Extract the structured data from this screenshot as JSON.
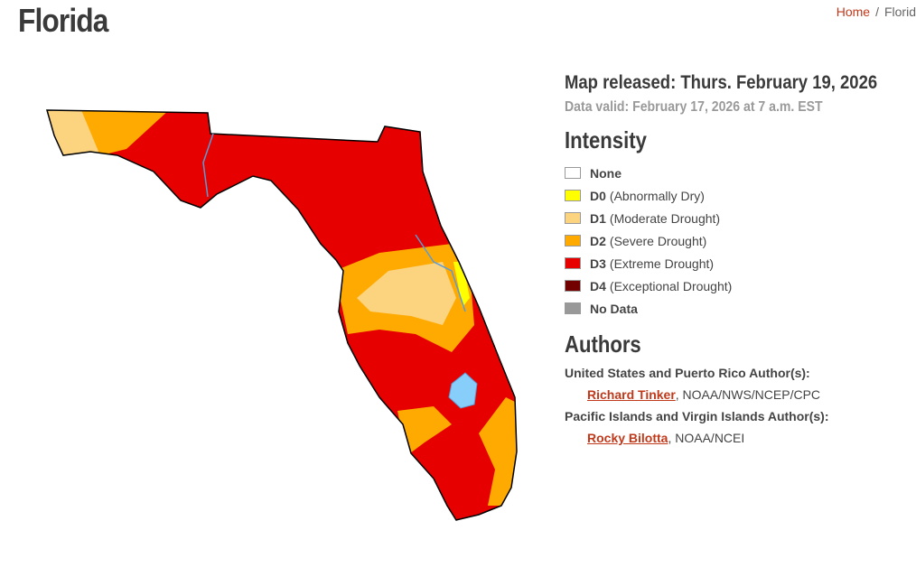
{
  "header": {
    "title": "Florida",
    "breadcrumb": {
      "home": "Home",
      "separator": "/",
      "current": "Florid"
    }
  },
  "map_info": {
    "released": "Map released: Thurs. February 19, 2026",
    "valid": "Data valid: February 17, 2026 at 7 a.m. EST"
  },
  "intensity": {
    "heading": "Intensity",
    "items": [
      {
        "code": "None",
        "color": "#ffffff"
      },
      {
        "code": "D0",
        "label": "(Abnormally Dry)",
        "color": "#ffff00"
      },
      {
        "code": "D1",
        "label": "(Moderate Drought)",
        "color": "#fcd37f"
      },
      {
        "code": "D2",
        "label": "(Severe Drought)",
        "color": "#ffaa00"
      },
      {
        "code": "D3",
        "label": "(Extreme Drought)",
        "color": "#e60000"
      },
      {
        "code": "D4",
        "label": "(Exceptional Drought)",
        "color": "#730000"
      },
      {
        "code": "No Data",
        "color": "#999999"
      }
    ]
  },
  "authors": {
    "heading": "Authors",
    "groups": [
      {
        "title": "United States and Puerto Rico Author(s):",
        "name": "Richard Tinker",
        "affiliation": ", NOAA/NWS/NCEP/CPC"
      },
      {
        "title": "Pacific Islands and Virgin Islands Author(s):",
        "name": "Rocky Bilotta",
        "affiliation": ", NOAA/NCEI"
      }
    ]
  }
}
